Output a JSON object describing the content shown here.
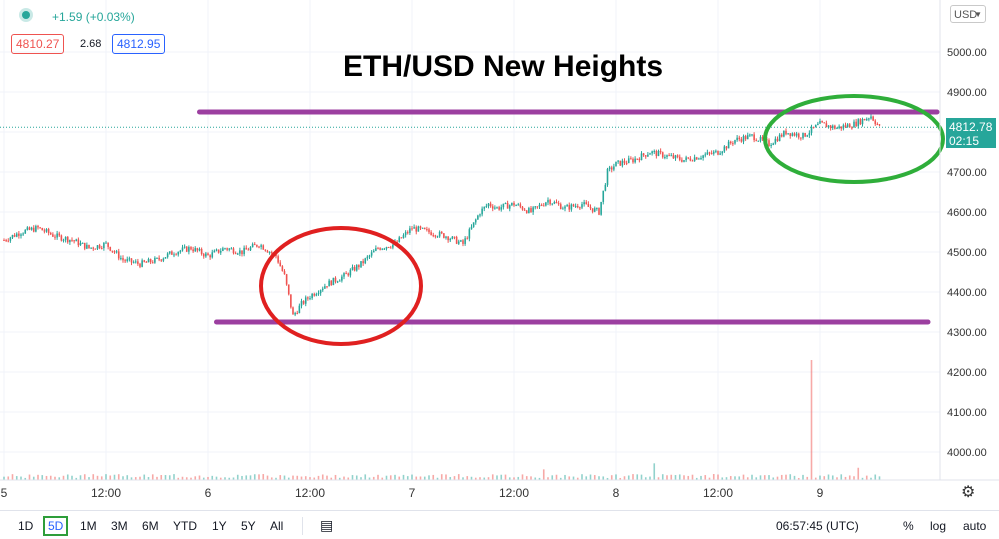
{
  "header": {
    "change": "+1.59 (+0.03%)",
    "bid": "4810.27",
    "spread": "2.68",
    "ask": "4812.95",
    "currency": "USD",
    "title": "ETH/USD New Heights"
  },
  "price_tag": {
    "price": "4812.78",
    "countdown": "02:15"
  },
  "toolbar": {
    "ranges": [
      "1D",
      "5D",
      "1M",
      "3M",
      "6M",
      "YTD",
      "1Y",
      "5Y",
      "All"
    ],
    "active_range": "5D",
    "clock": "06:57:45 (UTC)",
    "percent": "%",
    "log": "log",
    "auto": "auto"
  },
  "colors": {
    "up": "#26a69a",
    "down": "#ef5350",
    "annotation_line": "#9c3fa0",
    "red_circle": "#e02020",
    "green_circle": "#2fae3a"
  },
  "chart_data": {
    "type": "line",
    "title": "ETH/USD New Heights",
    "y_axis_ticks": [
      5000,
      4900,
      4800,
      4700,
      4600,
      4500,
      4400,
      4300,
      4200,
      4100,
      4000
    ],
    "y_axis_labels": [
      "5000.00",
      "4900.00",
      "4800.00",
      "4700.00",
      "4600.00",
      "4500.00",
      "4400.00",
      "4300.00",
      "4200.00",
      "4100.00",
      "4000.00"
    ],
    "ylim": [
      3970,
      5100
    ],
    "x_tick_labels": [
      "5",
      "12:00",
      "6",
      "12:00",
      "7",
      "12:00",
      "8",
      "12:00",
      "9"
    ],
    "x_tick_hours": [
      0,
      12,
      24,
      36,
      48,
      60,
      72,
      84,
      96
    ],
    "xlim_hours": [
      0,
      104
    ],
    "series": [
      {
        "x_hours": [
          0,
          2,
          4,
          6,
          8,
          10,
          12,
          14,
          16,
          18,
          20,
          22,
          24,
          26,
          28,
          30,
          32,
          33,
          34,
          35,
          36,
          38,
          40,
          42,
          44,
          46,
          48,
          50,
          52,
          54,
          56,
          57,
          58,
          60,
          62,
          64,
          66,
          68,
          70,
          71,
          72,
          74,
          76,
          78,
          80,
          82,
          84,
          86,
          88,
          90,
          92,
          94,
          96,
          98,
          100,
          102,
          103
        ],
        "values": [
          4530,
          4550,
          4560,
          4540,
          4530,
          4510,
          4520,
          4480,
          4470,
          4480,
          4500,
          4510,
          4490,
          4510,
          4500,
          4520,
          4490,
          4440,
          4340,
          4370,
          4390,
          4420,
          4440,
          4470,
          4510,
          4520,
          4560,
          4550,
          4540,
          4520,
          4600,
          4620,
          4610,
          4620,
          4600,
          4630,
          4610,
          4620,
          4600,
          4700,
          4720,
          4730,
          4750,
          4740,
          4730,
          4740,
          4750,
          4780,
          4790,
          4770,
          4800,
          4790,
          4820,
          4810,
          4820,
          4840,
          4812
        ]
      }
    ],
    "annotations": {
      "resistance_level": 4850,
      "support_level": 4325
    },
    "volume_spike_hour": 95,
    "grid": true
  }
}
